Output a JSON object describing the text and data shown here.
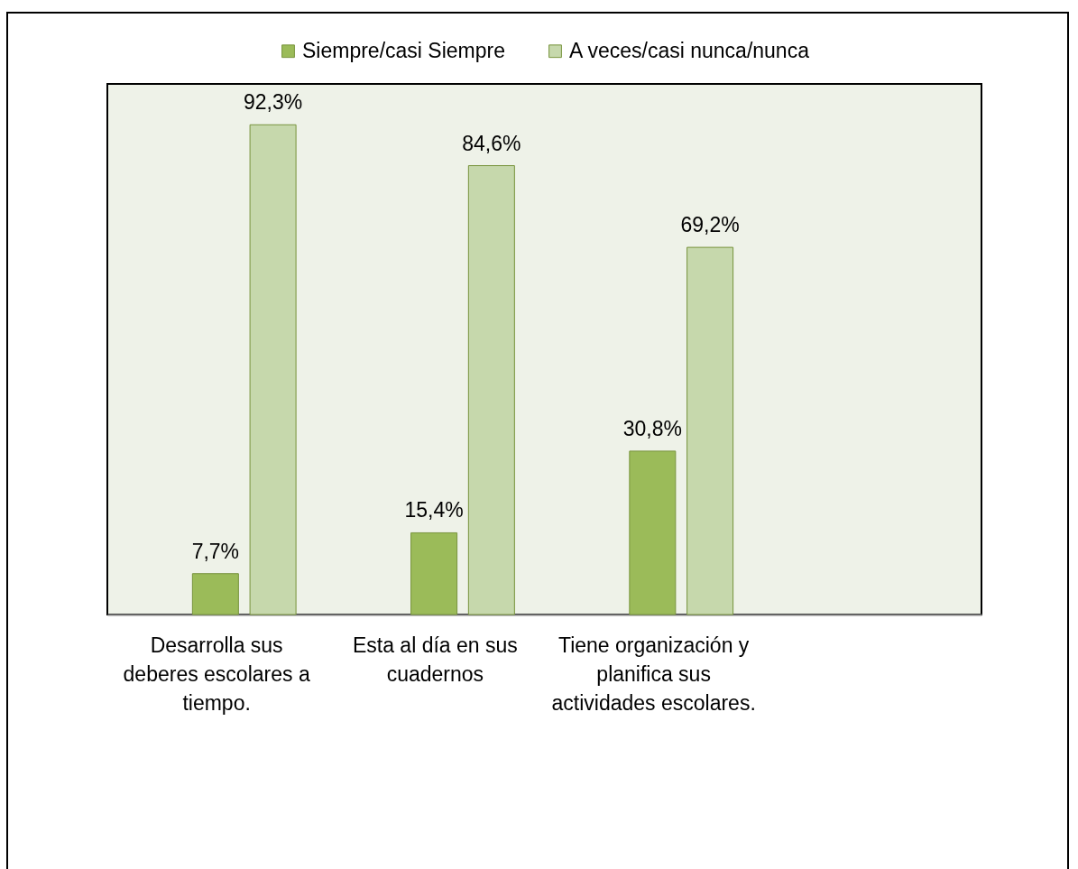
{
  "chart_data": {
    "type": "bar",
    "categories": [
      "Desarrolla sus deberes escolares a tiempo.",
      "Esta al día en sus cuadernos",
      "Tiene organización y planifica sus actividades escolares.",
      null
    ],
    "series": [
      {
        "name": "Siempre/casi Siempre",
        "color": "#9bbb59",
        "values": [
          7.7,
          15.4,
          30.8,
          null
        ],
        "value_labels": [
          "7,7%",
          "15,4%",
          "30,8%",
          null
        ]
      },
      {
        "name": "A veces/casi nunca/nunca",
        "color": "#c6d8ac",
        "values": [
          92.3,
          84.6,
          69.2,
          null
        ],
        "value_labels": [
          "92,3%",
          "84,6%",
          "69,2%",
          null
        ]
      }
    ],
    "legend": "top",
    "tick_labels": "x"
  }
}
